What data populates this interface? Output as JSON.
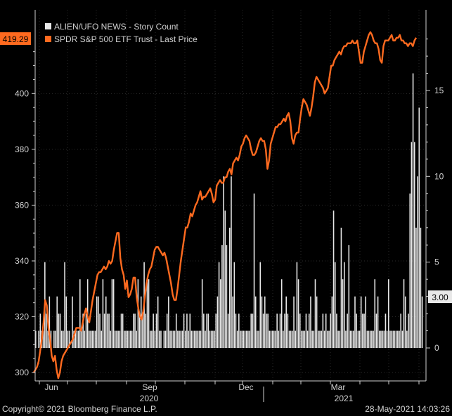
{
  "chart_data": {
    "type": "bar+line",
    "legend": {
      "placement": "top-left",
      "entries": [
        {
          "label": "ALIEN/UFO NEWS - Story Count",
          "color": "#e8e8e8"
        },
        {
          "label": "SPDR S&P 500 ETF Trust - Last Price",
          "color": "#ff6a1f"
        }
      ]
    },
    "x_ticks": [
      "Jun",
      "Sep",
      "Dec",
      "Mar"
    ],
    "x_year_labels": [
      "2020",
      "2021"
    ],
    "left_axis": {
      "ticks": [
        300,
        320,
        340,
        360,
        380,
        400
      ],
      "ylim": [
        297,
        430
      ]
    },
    "right_axis": {
      "ticks": [
        0,
        5,
        10,
        15
      ],
      "ylim": [
        0,
        19.7
      ]
    },
    "last_price_label": "419.29",
    "last_count_label": "3.00",
    "series": [
      {
        "name": "ALIEN/UFO NEWS - Story Count",
        "type": "bar",
        "values": [
          1,
          0,
          1,
          2,
          1,
          1,
          5,
          2,
          1,
          3,
          1,
          0,
          1,
          1,
          3,
          2,
          2,
          1,
          1,
          5,
          3,
          1,
          1,
          0,
          3,
          1,
          1,
          1,
          1,
          4,
          1,
          2,
          1,
          2,
          4,
          1,
          1,
          1,
          1,
          1,
          3,
          3,
          2,
          1,
          4,
          2,
          3,
          2,
          2,
          1,
          4,
          4,
          1,
          1,
          1,
          1,
          2,
          2,
          1,
          1,
          1,
          1,
          1,
          1,
          2,
          2,
          1,
          4,
          2,
          3,
          2,
          5,
          2,
          4,
          4,
          1,
          1,
          2,
          1,
          2,
          3,
          1,
          1,
          0,
          1,
          1,
          2,
          3,
          1,
          1,
          1,
          1,
          2,
          1,
          1,
          1,
          1,
          2,
          1,
          2,
          1,
          2,
          1,
          1,
          1,
          1,
          1,
          1,
          1,
          4,
          2,
          1,
          2,
          2,
          1,
          1,
          1,
          1,
          2,
          3,
          5,
          4,
          6,
          10,
          8,
          6,
          2,
          7,
          10,
          3,
          5,
          2,
          1,
          2,
          1,
          1,
          1,
          1,
          1,
          1,
          1,
          2,
          2,
          9,
          3,
          1,
          1,
          5,
          3,
          2,
          3,
          2,
          2,
          1,
          1,
          1,
          1,
          1,
          2,
          1,
          2,
          4,
          1,
          2,
          3,
          2,
          1,
          1,
          1,
          3,
          1,
          5,
          4,
          2,
          1,
          1,
          1,
          2,
          1,
          2,
          3,
          1,
          1,
          4,
          3,
          1,
          1,
          1,
          2,
          1,
          2,
          1,
          1,
          2,
          3,
          8,
          5,
          2,
          1,
          1,
          7,
          4,
          5,
          1,
          2,
          6,
          1,
          1,
          1,
          3,
          2,
          1,
          1,
          3,
          2,
          2,
          3,
          1,
          1,
          1,
          1,
          1,
          4,
          2,
          3,
          1,
          1,
          1,
          1,
          2,
          1,
          4,
          1,
          1,
          1,
          1,
          1,
          1,
          1,
          2,
          1,
          4,
          3,
          1,
          2,
          9,
          12,
          16,
          12,
          7,
          10,
          14,
          7,
          3
        ]
      },
      {
        "name": "SPDR S&P 500 ETF Trust - Last Price",
        "type": "line",
        "values": [
          300,
          301,
          302,
          304,
          308,
          312,
          318,
          326,
          324,
          316,
          312,
          306,
          304,
          306,
          301,
          298,
          300,
          304,
          306,
          307,
          308,
          309,
          310,
          311,
          312,
          314,
          316,
          316,
          316,
          315,
          318,
          321,
          323,
          320,
          318,
          322,
          326,
          329,
          332,
          335,
          336,
          336,
          337,
          338,
          337,
          338,
          340,
          339,
          340,
          344,
          347,
          350,
          350,
          341,
          337,
          335,
          330,
          333,
          327,
          328,
          330,
          334,
          334,
          327,
          323,
          320,
          319,
          322,
          327,
          332,
          335,
          337,
          338,
          341,
          344,
          345,
          345,
          344,
          343,
          342,
          343,
          341,
          338,
          335,
          332,
          328,
          326,
          326,
          330,
          335,
          340,
          344,
          348,
          352,
          352,
          354,
          357,
          356,
          358,
          360,
          361,
          363,
          365,
          362,
          363,
          363,
          364,
          365,
          366,
          364,
          361,
          362,
          367,
          368,
          369,
          368,
          368,
          370,
          370,
          372,
          373,
          371,
          375,
          376,
          377,
          376,
          378,
          381,
          382,
          384,
          385,
          384,
          383,
          380,
          378,
          378,
          379,
          381,
          383,
          384,
          383,
          383,
          380,
          373,
          376,
          382,
          384,
          386,
          388,
          388,
          389,
          389,
          390,
          391,
          390,
          392,
          393,
          390,
          384,
          382,
          385,
          386,
          386,
          391,
          395,
          398,
          397,
          396,
          394,
          392,
          395,
          399,
          404,
          406,
          405,
          404,
          403,
          402,
          400,
          401,
          402,
          406,
          410,
          410,
          412,
          413,
          414,
          415,
          414,
          416,
          417,
          417,
          418,
          418,
          418,
          419,
          418,
          418,
          419,
          415,
          411,
          411,
          415,
          417,
          419,
          421,
          422,
          421,
          419,
          418,
          418,
          416,
          412,
          411,
          417,
          419,
          419,
          419,
          420,
          421,
          419,
          419,
          420,
          420,
          421,
          419,
          419,
          418,
          418,
          417,
          418,
          418,
          417,
          419,
          420
        ]
      }
    ]
  },
  "footer": {
    "copyright": "Copyright© 2021 Bloomberg Finance L.P.",
    "timestamp": "28-May-2021 14:03:26"
  }
}
